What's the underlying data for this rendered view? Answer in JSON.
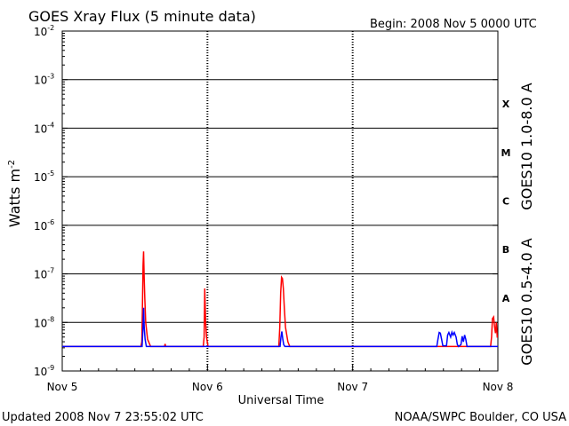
{
  "header": {
    "title": "GOES Xray Flux (5 minute data)",
    "begin": "Begin:  2008 Nov 5 0000 UTC"
  },
  "footer": {
    "updated": "Updated 2008 Nov  7 23:55:02 UTC",
    "source": "NOAA/SWPC Boulder, CO USA"
  },
  "flare_classes": [
    "X",
    "M",
    "C",
    "B",
    "A"
  ],
  "chart_data": {
    "type": "line",
    "yscale": "log",
    "ylim": [
      1e-09,
      0.01
    ],
    "xlim": [
      0,
      72
    ],
    "x_unit": "hours since 2008 Nov 5 0000 UTC",
    "xlabel": "Universal Time",
    "ylabel": "Watts m",
    "ylabel_sup": "-2",
    "x_ticks": [
      {
        "x": 0,
        "label": "Nov 5"
      },
      {
        "x": 24,
        "label": "Nov 6"
      },
      {
        "x": 48,
        "label": "Nov 7"
      },
      {
        "x": 72,
        "label": "Nov 8"
      }
    ],
    "y_ticks": [
      {
        "exp": -2,
        "label": "10",
        "sup": "-2"
      },
      {
        "exp": -3,
        "label": "10",
        "sup": "-3"
      },
      {
        "exp": -4,
        "label": "10",
        "sup": "-4"
      },
      {
        "exp": -5,
        "label": "10",
        "sup": "-5"
      },
      {
        "exp": -6,
        "label": "10",
        "sup": "-6"
      },
      {
        "exp": -7,
        "label": "10",
        "sup": "-7"
      },
      {
        "exp": -8,
        "label": "10",
        "sup": "-8"
      },
      {
        "exp": -9,
        "label": "10",
        "sup": "-9"
      }
    ],
    "grid": "horizontal at each decade",
    "series": [
      {
        "name": "GOES10 1.0-8.0 A",
        "color": "#ff0000",
        "points": [
          [
            0,
            3.2e-09
          ],
          [
            13,
            3.2e-09
          ],
          [
            13.15,
            4e-09
          ],
          [
            13.25,
            2e-08
          ],
          [
            13.35,
            1.5e-07
          ],
          [
            13.45,
            2.9e-07
          ],
          [
            13.55,
            8e-08
          ],
          [
            13.65,
            3e-08
          ],
          [
            13.8,
            1e-08
          ],
          [
            14.1,
            4.5e-09
          ],
          [
            14.6,
            3.2e-09
          ],
          [
            16.9,
            3.2e-09
          ],
          [
            17.0,
            3.6e-09
          ],
          [
            17.1,
            3.2e-09
          ],
          [
            23.3,
            3.2e-09
          ],
          [
            23.45,
            5e-09
          ],
          [
            23.55,
            5e-08
          ],
          [
            23.7,
            1e-08
          ],
          [
            23.85,
            5e-09
          ],
          [
            24.1,
            3.2e-09
          ],
          [
            35.8,
            3.2e-09
          ],
          [
            35.95,
            8e-09
          ],
          [
            36.1,
            4e-08
          ],
          [
            36.25,
            8.5e-08
          ],
          [
            36.4,
            8e-08
          ],
          [
            36.55,
            5e-08
          ],
          [
            36.7,
            2e-08
          ],
          [
            36.9,
            8e-09
          ],
          [
            37.3,
            4e-09
          ],
          [
            37.6,
            3.2e-09
          ],
          [
            70.8,
            3.2e-09
          ],
          [
            70.95,
            5e-09
          ],
          [
            71.1,
            1.2e-08
          ],
          [
            71.3,
            1.3e-08
          ],
          [
            71.45,
            8e-09
          ],
          [
            71.6,
            6e-09
          ],
          [
            71.75,
            1e-08
          ],
          [
            71.9,
            5e-09
          ],
          [
            72,
            5e-09
          ]
        ]
      },
      {
        "name": "GOES10 0.5-4.0 A",
        "color": "#0000ff",
        "points": [
          [
            0,
            3.2e-09
          ],
          [
            13.2,
            3.2e-09
          ],
          [
            13.35,
            8e-09
          ],
          [
            13.45,
            2e-08
          ],
          [
            13.55,
            8e-09
          ],
          [
            13.7,
            4.5e-09
          ],
          [
            13.9,
            3.2e-09
          ],
          [
            36.0,
            3.2e-09
          ],
          [
            36.15,
            5e-09
          ],
          [
            36.3,
            6.5e-09
          ],
          [
            36.45,
            4.5e-09
          ],
          [
            36.6,
            3.5e-09
          ],
          [
            36.8,
            3.2e-09
          ],
          [
            61.9,
            3.2e-09
          ],
          [
            62.1,
            4.5e-09
          ],
          [
            62.3,
            6.2e-09
          ],
          [
            62.5,
            6e-09
          ],
          [
            62.7,
            4.5e-09
          ],
          [
            62.9,
            3.3e-09
          ],
          [
            63.5,
            3.3e-09
          ],
          [
            63.7,
            5.5e-09
          ],
          [
            63.9,
            6.2e-09
          ],
          [
            64.2,
            5e-09
          ],
          [
            64.4,
            6.3e-09
          ],
          [
            64.6,
            5.5e-09
          ],
          [
            64.8,
            6.2e-09
          ],
          [
            65.1,
            5e-09
          ],
          [
            65.3,
            3.5e-09
          ],
          [
            65.5,
            3.2e-09
          ],
          [
            65.9,
            3.5e-09
          ],
          [
            66.1,
            5.2e-09
          ],
          [
            66.3,
            4e-09
          ],
          [
            66.5,
            5.5e-09
          ],
          [
            66.7,
            4.5e-09
          ],
          [
            66.9,
            3.2e-09
          ],
          [
            72,
            3.2e-09
          ]
        ]
      }
    ]
  }
}
